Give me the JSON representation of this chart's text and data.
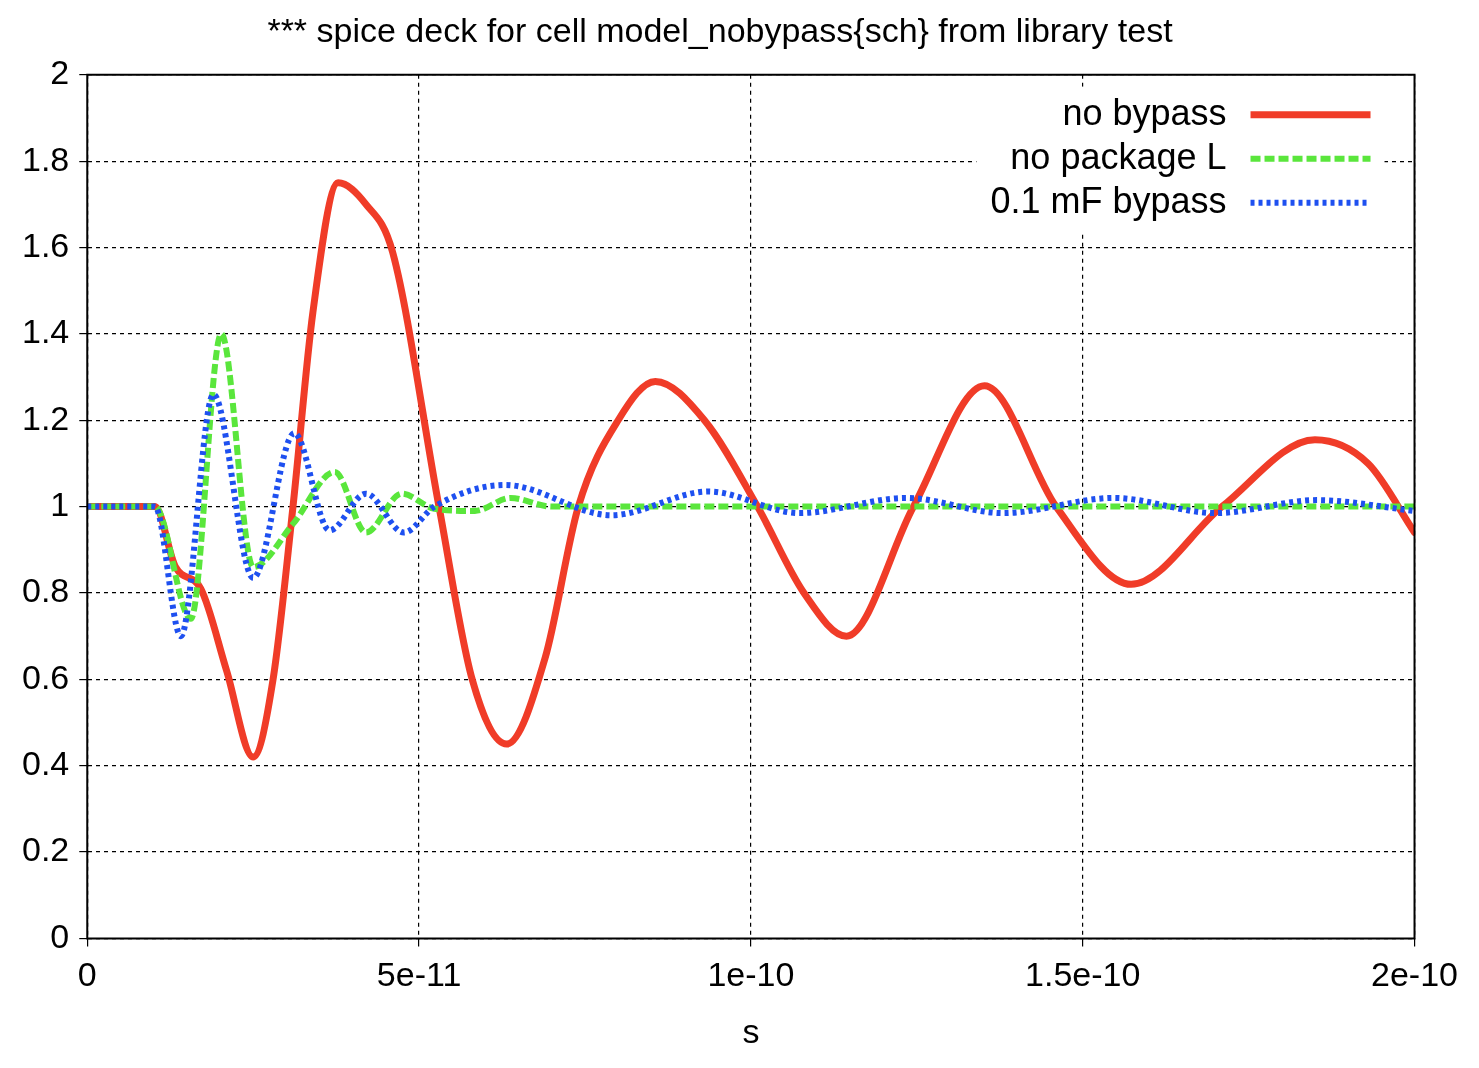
{
  "chart_data": {
    "type": "line",
    "title": "*** spice deck for cell model_nobypass{sch} from library test",
    "xlabel": "s",
    "xlim": [
      0,
      2e-10
    ],
    "xticks": [
      0,
      {
        "value": 5e-11,
        "label": "5e-11"
      },
      {
        "value": 1e-10,
        "label": "1e-10"
      },
      {
        "value": 1.5e-10,
        "label": "1.5e-10"
      },
      {
        "value": 2e-10,
        "label": "2e-10"
      }
    ],
    "ylim": [
      0,
      2
    ],
    "yticks": [
      0,
      0.2,
      0.4,
      0.6,
      0.8,
      1,
      1.2,
      1.4,
      1.6,
      1.8,
      2
    ],
    "grid": true,
    "legend": "top right",
    "marker": "none",
    "series": [
      {
        "name": "no bypass",
        "color": "#f03c28",
        "line_style": "solid",
        "x": [
          0,
          1.02e-11,
          1.33e-11,
          1.71e-11,
          2.1e-11,
          2.5e-11,
          2.8e-11,
          3.1e-11,
          3.4e-11,
          3.78e-11,
          4.2e-11,
          4.6e-11,
          5.3e-11,
          5.8e-11,
          6.32e-11,
          6.9e-11,
          7.4e-11,
          8e-11,
          8.56e-11,
          9.3e-11,
          1.01e-10,
          1.08e-10,
          1.144e-10,
          1.245e-10,
          1.352e-10,
          1.46e-10,
          1.573e-10,
          1.71e-10,
          1.85e-10,
          1.93e-10,
          2e-10
        ],
        "values": [
          1,
          1,
          0.86,
          0.81,
          0.62,
          0.42,
          0.6,
          1,
          1.45,
          1.75,
          1.7,
          1.59,
          1,
          0.6,
          0.45,
          0.65,
          1,
          1.2,
          1.29,
          1.2,
          1,
          0.8,
          0.7,
          1,
          1.28,
          1,
          0.82,
          1,
          1.155,
          1.1,
          0.94
        ]
      },
      {
        "name": "no package L",
        "color": "#5ae63c",
        "line_style": "dashed",
        "x": [
          0,
          1.02e-11,
          1.56e-11,
          2.02e-11,
          2.5e-11,
          3.1e-11,
          3.73e-11,
          4.2e-11,
          4.74e-11,
          5.23e-11,
          5.84e-11,
          6.38e-11,
          7e-11,
          1e-10,
          1.5e-10,
          2e-10
        ],
        "values": [
          1,
          1,
          0.74,
          1.4,
          0.86,
          0.96,
          1.08,
          0.94,
          1.03,
          0.995,
          0.99,
          1.02,
          1,
          1,
          1,
          1
        ]
      },
      {
        "name": "0.1 mF bypass",
        "color": "#1e50f0",
        "line_style": "dotted",
        "x": [
          0,
          1.02e-11,
          1.41e-11,
          1.9e-11,
          2.5e-11,
          3.12e-11,
          3.65e-11,
          4.2e-11,
          4.77e-11,
          5.23e-11,
          6.3e-11,
          7.9e-11,
          9.36e-11,
          1.073e-10,
          1.234e-10,
          1.38e-10,
          1.547e-10,
          1.7e-10,
          1.853e-10,
          2e-10
        ],
        "values": [
          1,
          1,
          0.7,
          1.26,
          0.835,
          1.17,
          0.945,
          1.03,
          0.94,
          1,
          1.05,
          0.98,
          1.035,
          0.985,
          1.02,
          0.985,
          1.02,
          0.985,
          1.015,
          0.99
        ]
      }
    ]
  }
}
